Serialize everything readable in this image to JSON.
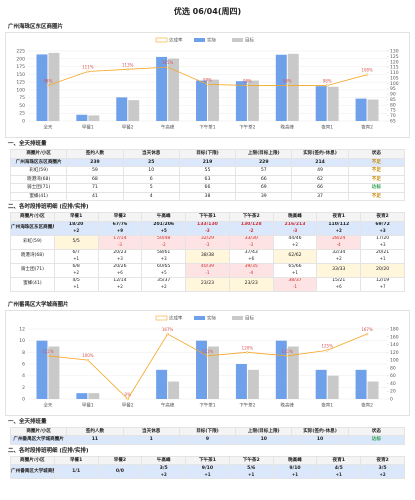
{
  "title": "优选 06/04(周四)",
  "chart_data": [
    {
      "type": "combo",
      "title": "广州海珠区东区商圈片",
      "categories": [
        "全天",
        "早餐1",
        "早餐2",
        "午高峰",
        "下午茶1",
        "下午茶2",
        "晚高峰",
        "夜宵1",
        "夜宵2"
      ],
      "series": [
        {
          "name": "达成率",
          "type": "line",
          "axis": "y2",
          "color": "#f5a623",
          "values": [
            98,
            111,
            113,
            115,
            99,
            98,
            98,
            98,
            108
          ],
          "value_labels": [
            "98%",
            "111%",
            "113%",
            "115%",
            "99%",
            "98%",
            "98%",
            "98%",
            "108%"
          ]
        },
        {
          "name": "实际",
          "type": "bar",
          "color": "#6fa0ea",
          "values": [
            214,
            20,
            76,
            206,
            130,
            128,
            213,
            112,
            72
          ]
        },
        {
          "name": "目标",
          "type": "bar",
          "color": "#c9c9c9",
          "values": [
            219,
            18,
            67,
            201,
            133,
            130,
            216,
            110,
            69
          ]
        }
      ],
      "ylim": [
        0,
        225
      ],
      "yticks": [
        0,
        25,
        50,
        75,
        100,
        125,
        150,
        175,
        200,
        225
      ],
      "y2lim": [
        65,
        130
      ],
      "y2ticks": [
        65,
        70,
        75,
        80,
        85,
        90,
        95,
        100,
        105,
        110,
        115,
        120,
        125,
        130
      ],
      "grid": true,
      "legend": "top"
    },
    {
      "type": "combo",
      "title": "广州番禺区大学城商圈片",
      "categories": [
        "全天",
        "早餐1",
        "早餐2",
        "午高峰",
        "下午茶1",
        "下午茶2",
        "晚高峰",
        "夜宵1",
        "夜宵2"
      ],
      "series": [
        {
          "name": "达成率",
          "type": "line",
          "axis": "y2",
          "color": "#f5a623",
          "values": [
            111,
            100,
            0,
            167,
            111,
            120,
            111,
            125,
            167
          ],
          "value_labels": [
            "111%",
            "100%",
            "0%",
            "167%",
            "111%",
            "120%",
            "111%",
            "125%",
            "167%"
          ]
        },
        {
          "name": "实际",
          "type": "bar",
          "color": "#6fa0ea",
          "values": [
            10,
            1,
            0,
            5,
            10,
            6,
            10,
            5,
            5
          ]
        },
        {
          "name": "目标",
          "type": "bar",
          "color": "#c9c9c9",
          "values": [
            9,
            1,
            0,
            3,
            9,
            5,
            9,
            4,
            3
          ]
        }
      ],
      "ylim": [
        0,
        12
      ],
      "yticks": [
        0,
        2,
        4,
        6,
        8,
        10,
        12
      ],
      "y2lim": [
        0,
        180
      ],
      "y2ticks": [
        0,
        20,
        40,
        60,
        80,
        100,
        120,
        140,
        160,
        180
      ],
      "grid": true,
      "legend": "top"
    }
  ],
  "sections": [
    {
      "summary": {
        "heading": "一、全天排班量",
        "columns": [
          "商圈片/小区",
          "签约人数",
          "当天休息",
          "目标(下限)",
          "上限(目标上限)",
          "实际(签约-休息)",
          "状态"
        ],
        "rows": [
          [
            "广州海珠区东区商圈片",
            239,
            25,
            219,
            229,
            214,
            "不足"
          ],
          [
            "彩虹(59)",
            59,
            10,
            55,
            57,
            49,
            "不足"
          ],
          [
            "晓港湾(68)",
            68,
            6,
            63,
            66,
            62,
            "不足"
          ],
          [
            "骑士团(71)",
            71,
            5,
            66,
            69,
            66,
            "达标"
          ],
          [
            "蜜蜂(41)",
            41,
            4,
            38,
            39,
            37,
            "不足"
          ]
        ],
        "status_colors": [
          "#c98a00",
          "#c98a00",
          "#c98a00",
          "#2e9e4f",
          "#c98a00"
        ]
      },
      "detail": {
        "heading": "二、各时段排班明细 (应排/实排)",
        "columns": [
          "商圈片/小区",
          "早餐1",
          "早餐2",
          "午高峰",
          "下午茶1",
          "下午茶2",
          "晚高峰",
          "夜宵1",
          "夜宵2"
        ],
        "rows": [
          {
            "name": "广州海珠区东区商圈片",
            "cells": [
              {
                "text": "18/20",
                "diff": "+2"
              },
              {
                "text": "67/76",
                "diff": "+9"
              },
              {
                "text": "201/206",
                "diff": "+5"
              },
              {
                "text": "133/130",
                "diff": "-3"
              },
              {
                "text": "130/128",
                "diff": "-2"
              },
              {
                "text": "216/213",
                "diff": "-3"
              },
              {
                "text": "110/112",
                "diff": "+2"
              },
              {
                "text": "69/72",
                "diff": "+3"
              }
            ]
          },
          {
            "name": "彩虹(59)",
            "cells": [
              {
                "text": "5/5",
                "diff": null
              },
              {
                "text": "17/14",
                "diff": "-3"
              },
              {
                "text": "50/48",
                "diff": "-2"
              },
              {
                "text": "32/29",
                "diff": "-3"
              },
              {
                "text": "33/30",
                "diff": "-3"
              },
              {
                "text": "44/46",
                "diff": "+2"
              },
              {
                "text": "28/24",
                "diff": "-4"
              },
              {
                "text": "17/20",
                "diff": "+3"
              }
            ]
          },
          {
            "name": "晓港湾(68)",
            "cells": [
              {
                "text": "6/7",
                "diff": "+1"
              },
              {
                "text": "20/23",
                "diff": "+3"
              },
              {
                "text": "58/61",
                "diff": "+3"
              },
              {
                "text": "38/38",
                "diff": null
              },
              {
                "text": "37/43",
                "diff": "+6"
              },
              {
                "text": "62/62",
                "diff": null
              },
              {
                "text": "32/34",
                "diff": "+2"
              },
              {
                "text": "20/21",
                "diff": "+1"
              }
            ]
          },
          {
            "name": "骑士团(71)",
            "cells": [
              {
                "text": "6/8",
                "diff": "+2"
              },
              {
                "text": "20/26",
                "diff": "+6"
              },
              {
                "text": "60/65",
                "diff": "+5"
              },
              {
                "text": "40/39",
                "diff": "-1"
              },
              {
                "text": "39/35",
                "diff": "-4"
              },
              {
                "text": "65/66",
                "diff": "+1"
              },
              {
                "text": "33/33",
                "diff": null
              },
              {
                "text": "20/20",
                "diff": null
              }
            ]
          },
          {
            "name": "蜜蜂(41)",
            "cells": [
              {
                "text": "4/5",
                "diff": "+1"
              },
              {
                "text": "12/14",
                "diff": "+2"
              },
              {
                "text": "35/37",
                "diff": "+2"
              },
              {
                "text": "23/23",
                "diff": null
              },
              {
                "text": "23/23",
                "diff": null
              },
              {
                "text": "38/37",
                "diff": "-1"
              },
              {
                "text": "15/21",
                "diff": "+6"
              },
              {
                "text": "12/19",
                "diff": "+7"
              }
            ]
          }
        ]
      }
    },
    {
      "summary": {
        "heading": "一、全天排班量",
        "columns": [
          "商圈片/小区",
          "签约人数",
          "当天休息",
          "目标(下限)",
          "上限(目标上限)",
          "实际(签约-休息)",
          "状态"
        ],
        "rows": [
          [
            "广州番禺区大学城商圈片",
            11,
            1,
            9,
            10,
            10,
            "达标"
          ]
        ],
        "status_colors": [
          "#2e9e4f"
        ]
      },
      "detail": {
        "heading": "二、各时段排班明细 (应排/实排)",
        "columns": [
          "商圈片/小区",
          "早餐1",
          "早餐2",
          "午高峰",
          "下午茶1",
          "下午茶2",
          "晚高峰",
          "夜宵1",
          "夜宵2"
        ],
        "rows": [
          {
            "name": "广州番禺区大学城商圈片",
            "cells": [
              {
                "text": "1/1",
                "diff": null
              },
              {
                "text": "0/0",
                "diff": null
              },
              {
                "text": "3/5",
                "diff": "+2"
              },
              {
                "text": "9/10",
                "diff": "+1"
              },
              {
                "text": "5/6",
                "diff": "+1"
              },
              {
                "text": "9/10",
                "diff": "+1"
              },
              {
                "text": "4/5",
                "diff": "+1"
              },
              {
                "text": "3/5",
                "diff": "+2"
              }
            ]
          }
        ]
      }
    }
  ]
}
